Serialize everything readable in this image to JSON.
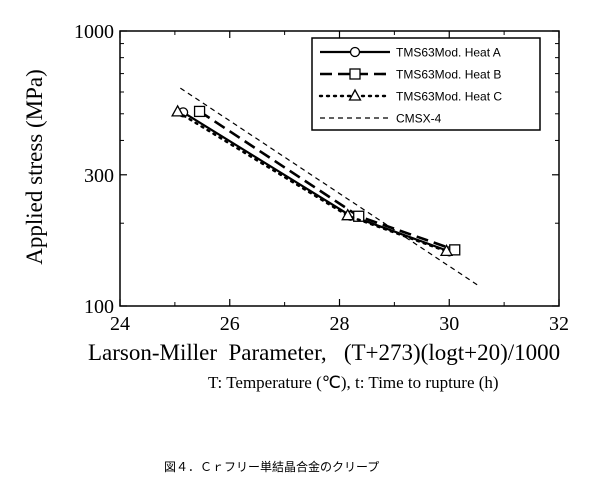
{
  "chart_data": {
    "type": "line",
    "xlabel": "Larson-Miller  Parameter,   (T+273)(logt+20)/1000",
    "ylabel": "Applied stress (MPa)",
    "note": "T: Temperature (℃), t: Time to rupture (h)",
    "xlim": [
      24,
      32
    ],
    "ylim": [
      100,
      1000
    ],
    "yscale": "log",
    "x_ticks": [
      "24",
      "26",
      "28",
      "30",
      "32"
    ],
    "y_ticks": [
      "100",
      "300",
      "1000"
    ],
    "legend_position": "top-right",
    "series": [
      {
        "name": "TMS63Mod. Heat A",
        "line": "solid",
        "marker": "circle",
        "x": [
          25.15,
          28.2,
          30.0
        ],
        "y": [
          506,
          213,
          158
        ],
        "color": "#000000"
      },
      {
        "name": "TMS63Mod. Heat B",
        "line": "long-dash",
        "marker": "square",
        "x": [
          25.45,
          28.35,
          30.1
        ],
        "y": [
          510,
          212,
          160
        ],
        "color": "#000000"
      },
      {
        "name": "TMS63Mod. Heat C",
        "line": "dotted",
        "marker": "triangle",
        "x": [
          25.05,
          28.15,
          29.95
        ],
        "y": [
          508,
          213,
          158
        ],
        "color": "#000000"
      },
      {
        "name": "CMSX-4",
        "line": "short-dash",
        "marker": "none",
        "x": [
          25.1,
          30.55
        ],
        "y": [
          620,
          118
        ],
        "color": "#000000"
      }
    ]
  },
  "caption": "図４．Ｃｒフリー単結晶合金のクリープ"
}
